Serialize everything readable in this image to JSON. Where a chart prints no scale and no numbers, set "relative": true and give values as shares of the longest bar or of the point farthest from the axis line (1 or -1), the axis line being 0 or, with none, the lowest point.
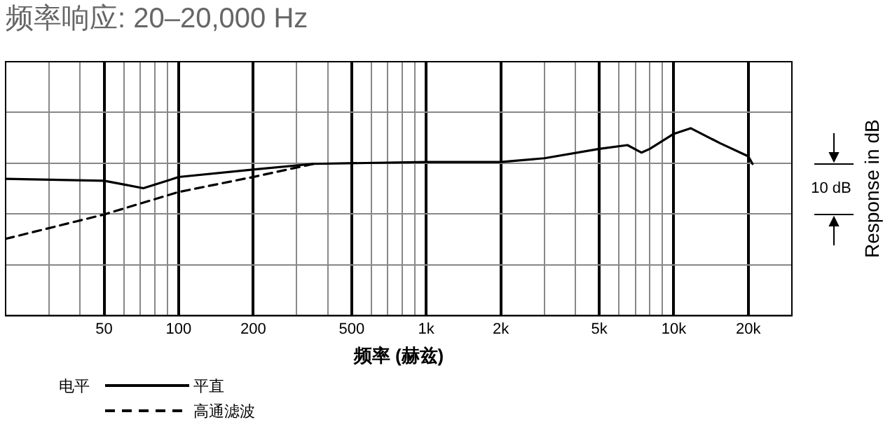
{
  "chart_data": {
    "type": "line",
    "title": "频率响应: 20–20,000 Hz",
    "xlabel": "频率 (赫兹)",
    "ylabel": "Response in dB",
    "legend_title": "电平",
    "annotations": [
      "10 dB"
    ],
    "log": "x",
    "grid": true,
    "legend": "bottom left",
    "tick_labels": "x",
    "marker": "none",
    "relative": true,
    "xlim": [
      20,
      30000
    ],
    "xticks": [
      {
        "value": 20,
        "label": null
      },
      {
        "value": 30,
        "label": null
      },
      {
        "value": 40,
        "label": null
      },
      50,
      {
        "value": 60,
        "label": null
      },
      {
        "value": 70,
        "label": null
      },
      {
        "value": 80,
        "label": null
      },
      {
        "value": 90,
        "label": null
      },
      100,
      200,
      {
        "value": 300,
        "label": null
      },
      {
        "value": 400,
        "label": null
      },
      500,
      {
        "value": 600,
        "label": null
      },
      {
        "value": 700,
        "label": null
      },
      {
        "value": 800,
        "label": null
      },
      {
        "value": 900,
        "label": null
      },
      {
        "value": 1000,
        "label": "1k"
      },
      {
        "value": 2000,
        "label": "2k"
      },
      {
        "value": 3000,
        "label": null
      },
      {
        "value": 4000,
        "label": null
      },
      {
        "value": 5000,
        "label": "5k"
      },
      {
        "value": 6000,
        "label": null
      },
      {
        "value": 7000,
        "label": null
      },
      {
        "value": 8000,
        "label": null
      },
      {
        "value": 9000,
        "label": null
      },
      {
        "value": 10000,
        "label": "10k"
      },
      {
        "value": 20000,
        "label": "20k"
      },
      {
        "value": 30000,
        "label": null
      }
    ],
    "series": [
      {
        "name": "平直",
        "color": "#000000",
        "line_style": "solid",
        "x": [
          20,
          50,
          60,
          72,
          90,
          100,
          200,
          350,
          1000,
          2000,
          3000,
          5000,
          6500,
          7400,
          8000,
          10000,
          11700,
          15400,
          20000,
          20800
        ],
        "values": [
          0.73,
          0.72,
          0.7,
          0.68,
          0.72,
          0.74,
          0.78,
          0.81,
          0.82,
          0.82,
          0.84,
          0.89,
          0.91,
          0.87,
          0.89,
          0.97,
          1,
          0.92,
          0.85,
          0.81
        ]
      },
      {
        "name": "高通滤波",
        "color": "#000000",
        "line_style": "dashed",
        "x": [
          20,
          50,
          100,
          200,
          350
        ],
        "values": [
          0.41,
          0.54,
          0.66,
          0.74,
          0.81
        ]
      }
    ]
  }
}
